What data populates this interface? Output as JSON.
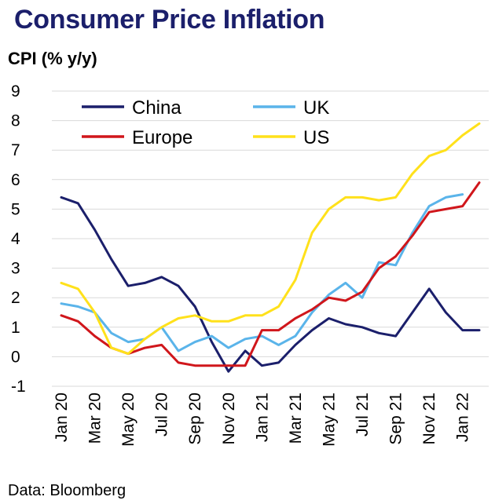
{
  "title": "Consumer Price Inflation",
  "subtitle": "CPI (% y/y)",
  "source": "Data: Bloomberg",
  "chart_data": {
    "type": "line",
    "x": [
      "Jan 20",
      "Feb 20",
      "Mar 20",
      "Apr 20",
      "May 20",
      "Jun 20",
      "Jul 20",
      "Aug 20",
      "Sep 20",
      "Oct 20",
      "Nov 20",
      "Dec 20",
      "Jan 21",
      "Feb 21",
      "Mar 21",
      "Apr 21",
      "May 21",
      "Jun 21",
      "Jul 21",
      "Aug 21",
      "Sep 21",
      "Oct 21",
      "Nov 21",
      "Dec 21",
      "Jan 22",
      "Feb 22"
    ],
    "x_tick_labels": [
      "Jan 20",
      "Mar 20",
      "May 20",
      "Jul 20",
      "Sep 20",
      "Nov 20",
      "Jan 21",
      "Mar 21",
      "May 21",
      "Jul 21",
      "Sep 21",
      "Nov 21",
      "Jan 22"
    ],
    "ylim": [
      -1,
      9
    ],
    "yticks": [
      -1,
      0,
      1,
      2,
      3,
      4,
      5,
      6,
      7,
      8,
      9
    ],
    "grid": "horizontal",
    "legend_position": "top-left",
    "series": [
      {
        "name": "China",
        "color": "#1b1f6b",
        "values": [
          5.4,
          5.2,
          4.3,
          3.3,
          2.4,
          2.5,
          2.7,
          2.4,
          1.7,
          0.5,
          -0.5,
          0.2,
          -0.3,
          -0.2,
          0.4,
          0.9,
          1.3,
          1.1,
          1.0,
          0.8,
          0.7,
          1.5,
          2.3,
          1.5,
          0.9,
          0.9
        ]
      },
      {
        "name": "UK",
        "color": "#5ab4ea",
        "values": [
          1.8,
          1.7,
          1.5,
          0.8,
          0.5,
          0.6,
          1.0,
          0.2,
          0.5,
          0.7,
          0.3,
          0.6,
          0.7,
          0.4,
          0.7,
          1.5,
          2.1,
          2.5,
          2.0,
          3.2,
          3.1,
          4.2,
          5.1,
          5.4,
          5.5,
          null
        ]
      },
      {
        "name": "Europe",
        "color": "#d0161b",
        "values": [
          1.4,
          1.2,
          0.7,
          0.3,
          0.1,
          0.3,
          0.4,
          -0.2,
          -0.3,
          -0.3,
          -0.3,
          -0.3,
          0.9,
          0.9,
          1.3,
          1.6,
          2.0,
          1.9,
          2.2,
          3.0,
          3.4,
          4.1,
          4.9,
          5.0,
          5.1,
          5.9
        ]
      },
      {
        "name": "US",
        "color": "#ffe11b",
        "values": [
          2.5,
          2.3,
          1.5,
          0.3,
          0.1,
          0.6,
          1.0,
          1.3,
          1.4,
          1.2,
          1.2,
          1.4,
          1.4,
          1.7,
          2.6,
          4.2,
          5.0,
          5.4,
          5.4,
          5.3,
          5.4,
          6.2,
          6.8,
          7.0,
          7.5,
          7.9
        ]
      }
    ]
  }
}
